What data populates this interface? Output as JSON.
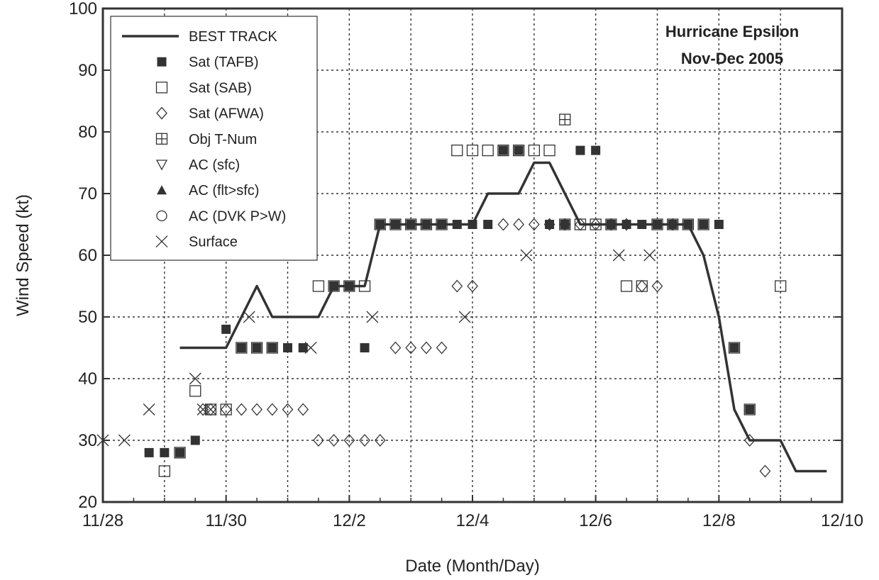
{
  "chart_data": {
    "type": "scatter",
    "title_lines": [
      "Hurricane Epsilon",
      "Nov-Dec 2005"
    ],
    "xlabel": "Date (Month/Day)",
    "ylabel": "Wind Speed (kt)",
    "xlim": [
      0,
      12
    ],
    "ylim": [
      20,
      100
    ],
    "x_unit": "days since 11/28",
    "x_ticks": [
      {
        "x": 0,
        "label": "11/28"
      },
      {
        "x": 2,
        "label": "11/30"
      },
      {
        "x": 4,
        "label": "12/2"
      },
      {
        "x": 6,
        "label": "12/4"
      },
      {
        "x": 8,
        "label": "12/6"
      },
      {
        "x": 10,
        "label": "12/8"
      },
      {
        "x": 12,
        "label": "12/10"
      }
    ],
    "y_ticks": [
      20,
      30,
      40,
      50,
      60,
      70,
      80,
      90,
      100
    ],
    "grid": true,
    "legend_position": "top-left",
    "legend": [
      {
        "marker": "line",
        "label": "BEST TRACK"
      },
      {
        "marker": "square-filled",
        "label": "Sat (TAFB)"
      },
      {
        "marker": "square-open",
        "label": "Sat (SAB)"
      },
      {
        "marker": "diamond-open",
        "label": "Sat (AFWA)"
      },
      {
        "marker": "square-plus",
        "label": "Obj T-Num"
      },
      {
        "marker": "triangle-down-open",
        "label": "AC (sfc)"
      },
      {
        "marker": "triangle-up-filled",
        "label": "AC (flt>sfc)"
      },
      {
        "marker": "circle-open",
        "label": "AC (DVK P>W)"
      },
      {
        "marker": "x",
        "label": "Surface"
      }
    ],
    "series": [
      {
        "name": "BEST TRACK",
        "marker": "line",
        "points": [
          [
            1.25,
            45
          ],
          [
            2.0,
            45
          ],
          [
            2.5,
            55
          ],
          [
            2.75,
            50
          ],
          [
            3.0,
            50
          ],
          [
            3.5,
            50
          ],
          [
            3.75,
            55
          ],
          [
            4.0,
            55
          ],
          [
            4.25,
            55
          ],
          [
            4.5,
            65
          ],
          [
            5.0,
            65
          ],
          [
            5.5,
            65
          ],
          [
            6.0,
            65
          ],
          [
            6.25,
            70
          ],
          [
            6.5,
            70
          ],
          [
            6.75,
            70
          ],
          [
            7.0,
            75
          ],
          [
            7.25,
            75
          ],
          [
            7.5,
            70
          ],
          [
            7.75,
            65
          ],
          [
            8.0,
            65
          ],
          [
            8.5,
            65
          ],
          [
            9.0,
            65
          ],
          [
            9.5,
            65
          ],
          [
            9.75,
            60
          ],
          [
            10.0,
            50
          ],
          [
            10.25,
            35
          ],
          [
            10.5,
            30
          ],
          [
            10.75,
            30
          ],
          [
            11.0,
            30
          ],
          [
            11.25,
            25
          ],
          [
            11.5,
            25
          ],
          [
            11.75,
            25
          ]
        ]
      },
      {
        "name": "Sat (TAFB)",
        "marker": "square-filled",
        "points": [
          [
            0.75,
            28
          ],
          [
            1.0,
            28
          ],
          [
            1.25,
            28
          ],
          [
            1.5,
            30
          ],
          [
            2.0,
            48
          ],
          [
            2.25,
            45
          ],
          [
            2.5,
            45
          ],
          [
            2.75,
            45
          ],
          [
            3.0,
            45
          ],
          [
            3.25,
            45
          ],
          [
            3.75,
            55
          ],
          [
            4.0,
            55
          ],
          [
            4.25,
            45
          ],
          [
            4.5,
            65
          ],
          [
            4.75,
            65
          ],
          [
            5.0,
            65
          ],
          [
            5.25,
            65
          ],
          [
            5.5,
            65
          ],
          [
            5.75,
            65
          ],
          [
            6.0,
            65
          ],
          [
            6.25,
            65
          ],
          [
            6.5,
            77
          ],
          [
            6.75,
            77
          ],
          [
            7.25,
            65
          ],
          [
            7.5,
            65
          ],
          [
            7.75,
            77
          ],
          [
            8.0,
            77
          ],
          [
            8.25,
            65
          ],
          [
            8.5,
            65
          ],
          [
            8.75,
            65
          ],
          [
            9.0,
            65
          ],
          [
            9.25,
            65
          ],
          [
            9.5,
            65
          ],
          [
            9.75,
            65
          ],
          [
            10.0,
            65
          ],
          [
            10.25,
            45
          ],
          [
            10.5,
            35
          ]
        ]
      },
      {
        "name": "Sat (SAB)",
        "marker": "square-open",
        "points": [
          [
            1.0,
            25
          ],
          [
            1.25,
            28
          ],
          [
            1.5,
            38
          ],
          [
            1.75,
            35
          ],
          [
            2.0,
            35
          ],
          [
            2.25,
            45
          ],
          [
            2.5,
            45
          ],
          [
            2.75,
            45
          ],
          [
            3.5,
            55
          ],
          [
            3.75,
            55
          ],
          [
            4.0,
            55
          ],
          [
            4.25,
            55
          ],
          [
            4.5,
            65
          ],
          [
            4.75,
            65
          ],
          [
            5.0,
            65
          ],
          [
            5.25,
            65
          ],
          [
            5.5,
            65
          ],
          [
            5.75,
            77
          ],
          [
            6.0,
            77
          ],
          [
            6.25,
            77
          ],
          [
            6.5,
            77
          ],
          [
            6.75,
            77
          ],
          [
            7.0,
            77
          ],
          [
            7.25,
            77
          ],
          [
            7.5,
            65
          ],
          [
            7.75,
            65
          ],
          [
            8.0,
            65
          ],
          [
            8.25,
            65
          ],
          [
            8.5,
            55
          ],
          [
            8.75,
            55
          ],
          [
            9.0,
            65
          ],
          [
            9.25,
            65
          ],
          [
            9.5,
            65
          ],
          [
            9.75,
            65
          ],
          [
            10.25,
            45
          ],
          [
            10.5,
            35
          ],
          [
            11.0,
            55
          ]
        ]
      },
      {
        "name": "Sat (AFWA)",
        "marker": "diamond-open",
        "points": [
          [
            1.625,
            35
          ],
          [
            1.75,
            35
          ],
          [
            2.0,
            35
          ],
          [
            2.25,
            35
          ],
          [
            2.5,
            35
          ],
          [
            2.75,
            35
          ],
          [
            3.0,
            35
          ],
          [
            3.25,
            35
          ],
          [
            3.5,
            30
          ],
          [
            3.75,
            30
          ],
          [
            4.0,
            30
          ],
          [
            4.25,
            30
          ],
          [
            4.5,
            30
          ],
          [
            4.75,
            45
          ],
          [
            5.0,
            45
          ],
          [
            5.25,
            45
          ],
          [
            5.5,
            45
          ],
          [
            5.75,
            55
          ],
          [
            6.0,
            55
          ],
          [
            6.5,
            65
          ],
          [
            6.75,
            65
          ],
          [
            7.0,
            65
          ],
          [
            7.25,
            65
          ],
          [
            7.5,
            65
          ],
          [
            7.75,
            65
          ],
          [
            8.0,
            65
          ],
          [
            8.25,
            65
          ],
          [
            8.5,
            65
          ],
          [
            8.75,
            55
          ],
          [
            9.0,
            55
          ],
          [
            9.25,
            65
          ],
          [
            10.5,
            30
          ],
          [
            10.75,
            25
          ]
        ]
      },
      {
        "name": "Obj T-Num",
        "marker": "square-plus",
        "points": [
          [
            7.5,
            82
          ]
        ]
      },
      {
        "name": "Surface",
        "marker": "x",
        "points": [
          [
            0.0,
            30
          ],
          [
            0.35,
            30
          ],
          [
            0.75,
            35
          ],
          [
            1.5,
            40
          ],
          [
            1.625,
            35
          ],
          [
            1.75,
            35
          ],
          [
            2.375,
            50
          ],
          [
            3.375,
            45
          ],
          [
            4.375,
            50
          ],
          [
            5.875,
            50
          ],
          [
            6.875,
            60
          ],
          [
            8.375,
            60
          ],
          [
            8.875,
            60
          ]
        ]
      }
    ]
  }
}
